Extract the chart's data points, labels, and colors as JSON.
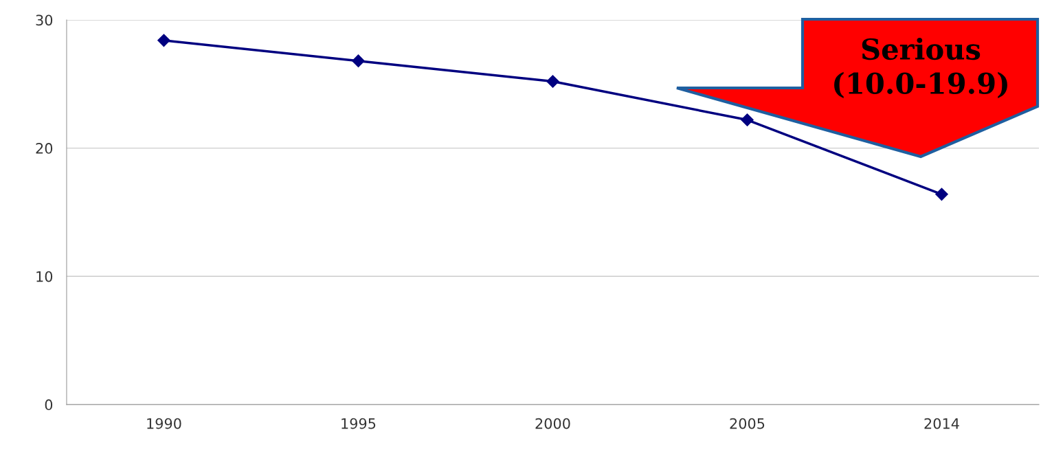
{
  "chart_data": {
    "type": "line",
    "categories": [
      "1990",
      "1995",
      "2000",
      "2005",
      "2014"
    ],
    "series": [
      {
        "color": "#000080",
        "values": [
          28.4,
          26.8,
          25.2,
          22.2,
          16.4
        ]
      }
    ],
    "ylim": [
      0,
      30
    ],
    "yticks": [
      0,
      10,
      20,
      30
    ],
    "grid": "y",
    "marker": "diamond",
    "line_style": "solid",
    "legend": false,
    "annotations": [
      "Serious\n(10.0-19.9)"
    ]
  }
}
